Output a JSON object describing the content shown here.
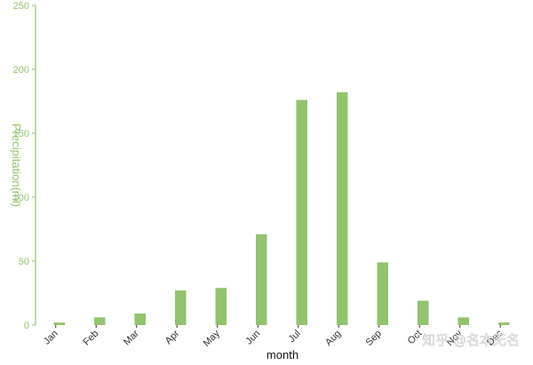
{
  "chart_data": {
    "type": "bar",
    "title": "",
    "xlabel": "month",
    "ylabel": "Precipitation(ml)",
    "categories": [
      "Jan",
      "Feb",
      "Mar",
      "Apr",
      "May",
      "Jun",
      "Jul",
      "Aug",
      "Sep",
      "Oct",
      "Nov",
      "Dec"
    ],
    "values": [
      2,
      6,
      9,
      27,
      29,
      71,
      176,
      182,
      49,
      19,
      6,
      2
    ],
    "ylim": [
      0,
      250
    ],
    "yticks": [
      0,
      50,
      100,
      150,
      200,
      250
    ],
    "grid": false,
    "legend": "none",
    "colors": {
      "bar": "#92c36e",
      "y_axis": "#92c36e",
      "x_tick_text": "#333333"
    }
  },
  "watermark": {
    "text": "知乎 @名本无名"
  }
}
